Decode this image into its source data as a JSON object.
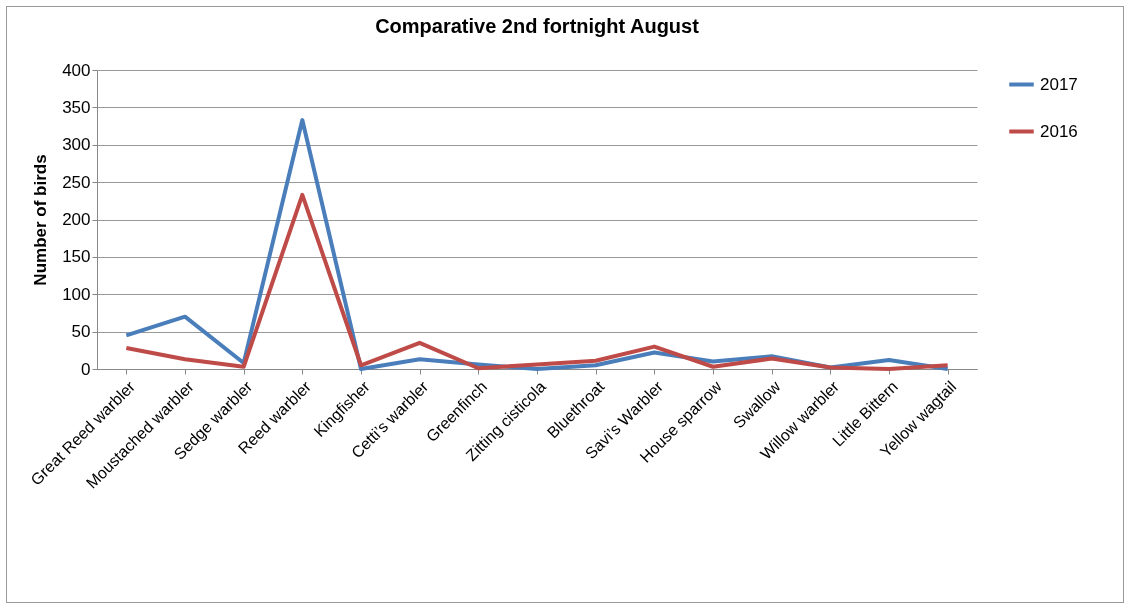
{
  "chart_data": {
    "type": "line",
    "title": "Comparative 2nd fortnight August",
    "ylabel": "Number  of birds",
    "categories": [
      "Great Reed warbler",
      "Moustached warbler",
      "Sedge warbler",
      "Reed warbler",
      "Kingfisher",
      "Cetti’s warbler",
      "Greenfinch",
      "Zitting cisticola",
      "Bluethroat",
      "Savi’s Warbler",
      "House sparrow",
      "Swallow",
      "Willow warbler",
      "Little Bittern",
      "Yellow wagtail"
    ],
    "series": [
      {
        "name": "2017",
        "color": "#4a7ebb",
        "values": [
          45,
          70,
          8,
          333,
          0,
          13,
          6,
          0,
          5,
          22,
          10,
          17,
          2,
          12,
          0
        ]
      },
      {
        "name": "2016",
        "color": "#be4b48",
        "values": [
          28,
          13,
          3,
          233,
          5,
          35,
          1,
          6,
          11,
          30,
          3,
          14,
          2,
          0,
          5
        ]
      }
    ],
    "ylim": [
      0,
      400
    ],
    "yticks": [
      0,
      50,
      100,
      150,
      200,
      250,
      300,
      350,
      400
    ],
    "grid": "y",
    "legend": "right",
    "marker": "none",
    "line_style": "solid"
  }
}
